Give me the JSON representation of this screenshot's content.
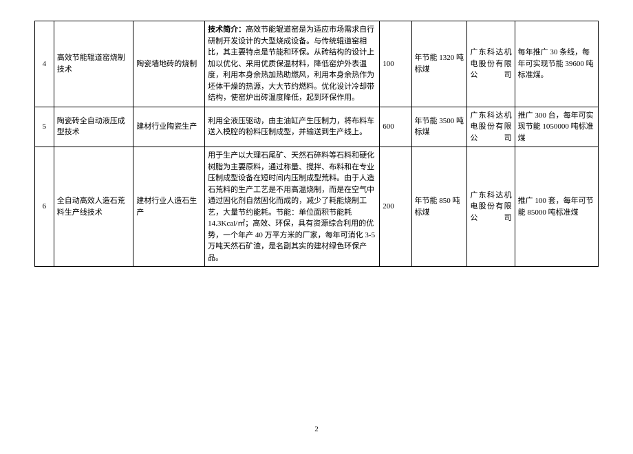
{
  "table": {
    "rows": [
      {
        "num": "4",
        "name": "高效节能辊道窑烧制技术",
        "field": "陶瓷墙地砖的烧制",
        "desc_label": "技术简介：",
        "desc": "高效节能辊道窑是为适应市场需求自行研制开发设计的大型烧成设备。与传统辊道窑相比，其主要特点是节能和环保。从砖结构的设计上加以优化、采用优质保温材料，降低窑炉外表温度，利用本身余热加热助燃风，利用本身余热作为坯体干燥的热源，大大节约燃料。优化设计冷却带结构，使窑炉出砖温度降低，起到环保作用。",
        "val": "100",
        "save": "年节能 1320 吨标煤",
        "company": "广东科达机电股份有限公司",
        "promo": "每年推广 30 条线，每年可实现节能 39600 吨标准煤。"
      },
      {
        "num": "5",
        "name": "陶瓷砖全自动液压成型技术",
        "field": "建材行业陶瓷生产",
        "desc_label": "",
        "desc": "利用全液压驱动，由主油缸产生压制力，将布料车送入模腔的粉料压制成型，并输送到生产线上。",
        "val": "600",
        "save": "年节能 3500 吨标煤",
        "company": "广东科达机电股份有限公司",
        "promo": "推广 300 台，每年可实现节能 1050000 吨标准煤"
      },
      {
        "num": "6",
        "name": "全自动高效人造石荒料生产线技术",
        "field": "建材行业人造石生产",
        "desc_label": "",
        "desc": "用于生产以大理石尾矿、天然石碎料等石料和硬化树脂为主要原料，通过称量、搅拌、布料和在专业压制成型设备在短时间内压制成型荒料。由于人造石荒料的生产工艺是不用高温烧制，而是在空气中通过固化剂自然固化而成的，减少了耗能烧制工艺，大量节约能耗。节能：单位面积节能耗 14.3Kcal/㎡；高效、环保，具有资源综合利用的优势，一个年产 40 万平方米的厂家，每年可消化 3-5 万吨天然石矿渣，是名副其实的建材绿色环保产品。",
        "val": "200",
        "save": "年节能 850 吨标煤",
        "company": "广东科达机电股份有限公司",
        "promo": "推广 100 套，每年可节能 85000 吨标准煤"
      }
    ]
  },
  "page_number": "2"
}
